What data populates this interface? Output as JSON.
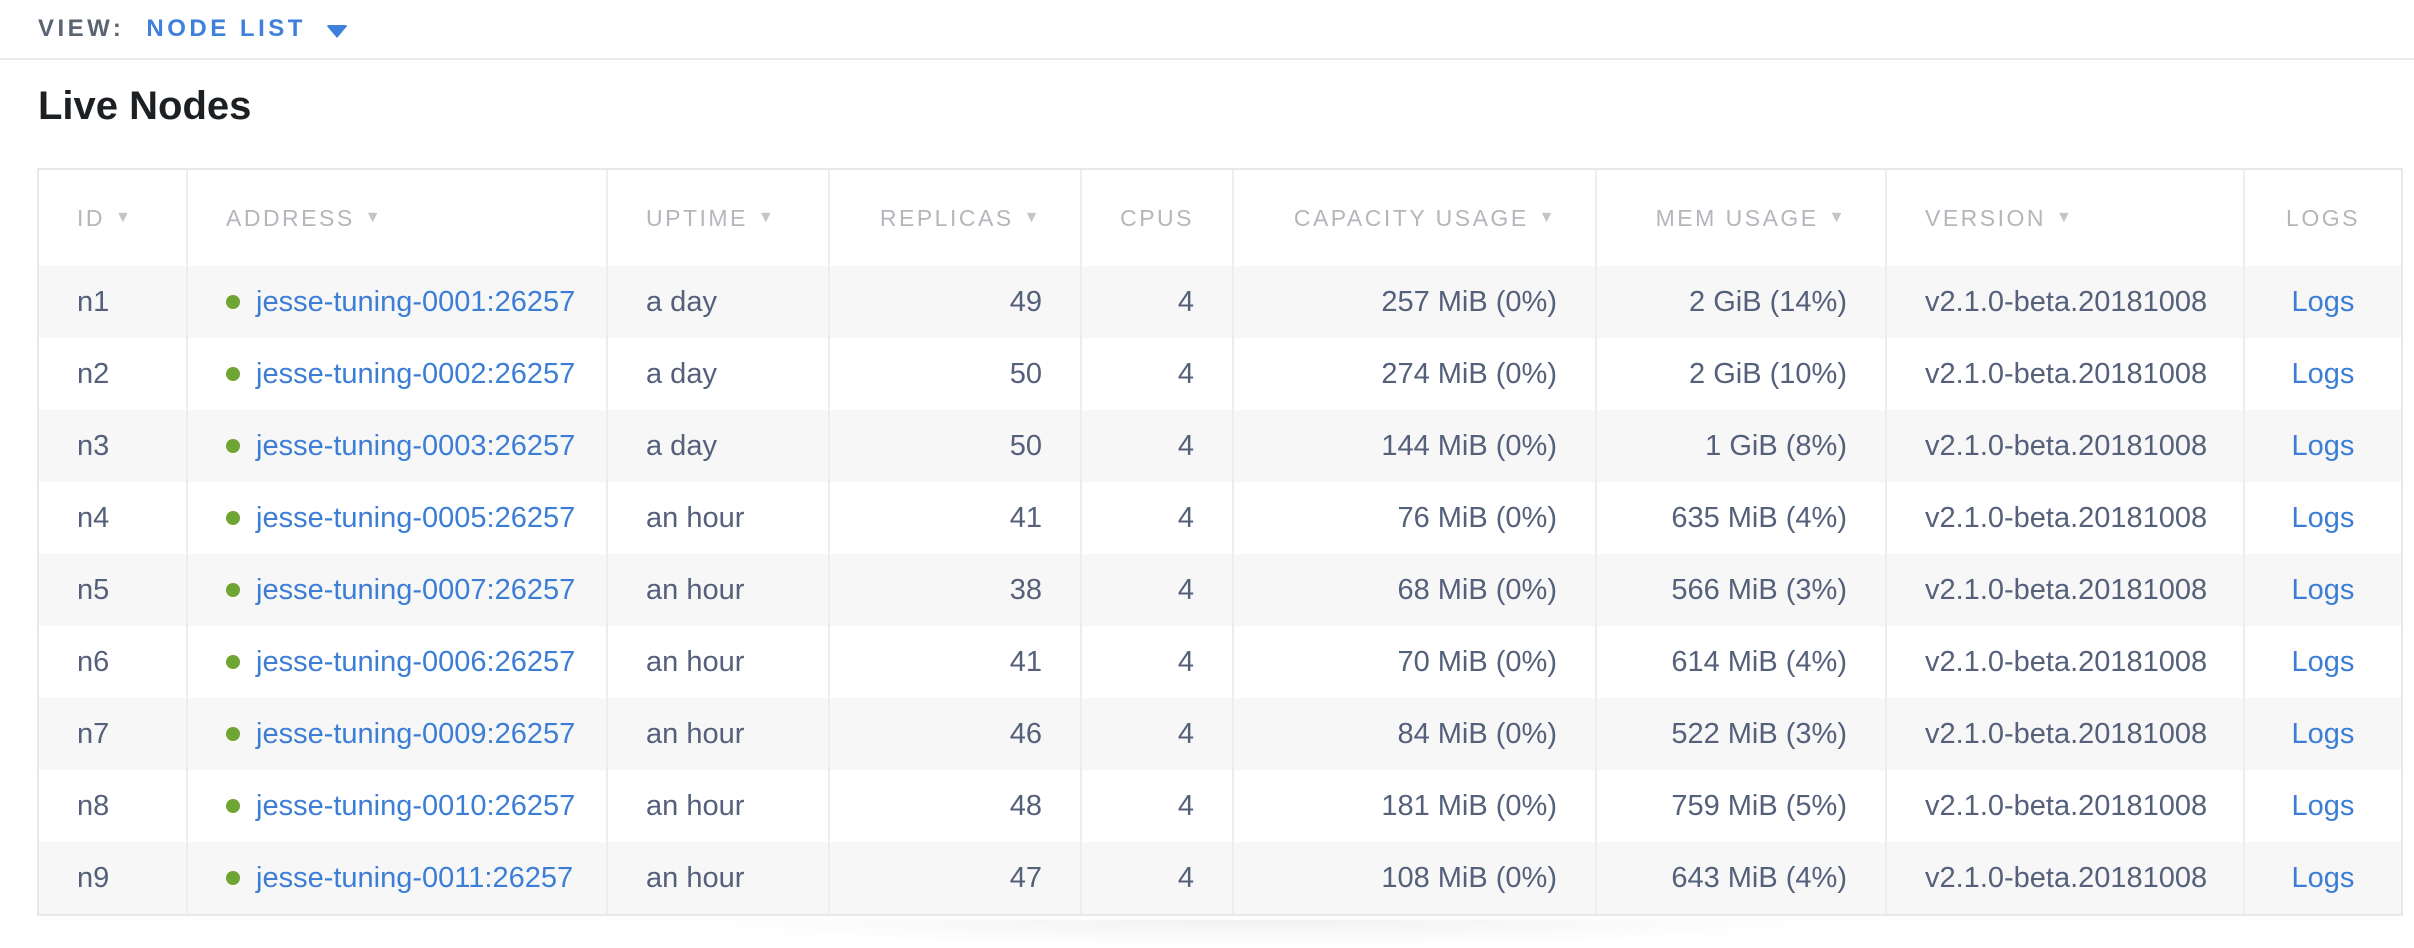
{
  "view_bar": {
    "label": "VIEW:",
    "selected": "NODE LIST",
    "caret_icon": "chevron-down"
  },
  "page": {
    "title": "Live Nodes"
  },
  "table": {
    "sort_icon": "▼",
    "columns": [
      {
        "label": "ID",
        "sortable": true,
        "align": "left"
      },
      {
        "label": "ADDRESS",
        "sortable": true,
        "align": "left"
      },
      {
        "label": "UPTIME",
        "sortable": true,
        "align": "left"
      },
      {
        "label": "REPLICAS",
        "sortable": true,
        "align": "right"
      },
      {
        "label": "CPUS",
        "sortable": false,
        "align": "right"
      },
      {
        "label": "CAPACITY USAGE",
        "sortable": true,
        "align": "right"
      },
      {
        "label": "MEM USAGE",
        "sortable": true,
        "align": "right"
      },
      {
        "label": "VERSION",
        "sortable": true,
        "align": "left"
      },
      {
        "label": "LOGS",
        "sortable": false,
        "align": "center"
      }
    ],
    "rows": [
      {
        "id": "n1",
        "address": "jesse-tuning-0001:26257",
        "uptime": "a day",
        "replicas": "49",
        "cpus": "4",
        "capacity": "257 MiB (0%)",
        "mem": "2 GiB (14%)",
        "version": "v2.1.0-beta.20181008",
        "logs": "Logs",
        "status": "live"
      },
      {
        "id": "n2",
        "address": "jesse-tuning-0002:26257",
        "uptime": "a day",
        "replicas": "50",
        "cpus": "4",
        "capacity": "274 MiB (0%)",
        "mem": "2 GiB (10%)",
        "version": "v2.1.0-beta.20181008",
        "logs": "Logs",
        "status": "live"
      },
      {
        "id": "n3",
        "address": "jesse-tuning-0003:26257",
        "uptime": "a day",
        "replicas": "50",
        "cpus": "4",
        "capacity": "144 MiB (0%)",
        "mem": "1 GiB (8%)",
        "version": "v2.1.0-beta.20181008",
        "logs": "Logs",
        "status": "live"
      },
      {
        "id": "n4",
        "address": "jesse-tuning-0005:26257",
        "uptime": "an hour",
        "replicas": "41",
        "cpus": "4",
        "capacity": "76 MiB (0%)",
        "mem": "635 MiB (4%)",
        "version": "v2.1.0-beta.20181008",
        "logs": "Logs",
        "status": "live"
      },
      {
        "id": "n5",
        "address": "jesse-tuning-0007:26257",
        "uptime": "an hour",
        "replicas": "38",
        "cpus": "4",
        "capacity": "68 MiB (0%)",
        "mem": "566 MiB (3%)",
        "version": "v2.1.0-beta.20181008",
        "logs": "Logs",
        "status": "live"
      },
      {
        "id": "n6",
        "address": "jesse-tuning-0006:26257",
        "uptime": "an hour",
        "replicas": "41",
        "cpus": "4",
        "capacity": "70 MiB (0%)",
        "mem": "614 MiB (4%)",
        "version": "v2.1.0-beta.20181008",
        "logs": "Logs",
        "status": "live"
      },
      {
        "id": "n7",
        "address": "jesse-tuning-0009:26257",
        "uptime": "an hour",
        "replicas": "46",
        "cpus": "4",
        "capacity": "84 MiB (0%)",
        "mem": "522 MiB (3%)",
        "version": "v2.1.0-beta.20181008",
        "logs": "Logs",
        "status": "live"
      },
      {
        "id": "n8",
        "address": "jesse-tuning-0010:26257",
        "uptime": "an hour",
        "replicas": "48",
        "cpus": "4",
        "capacity": "181 MiB (0%)",
        "mem": "759 MiB (5%)",
        "version": "v2.1.0-beta.20181008",
        "logs": "Logs",
        "status": "live"
      },
      {
        "id": "n9",
        "address": "jesse-tuning-0011:26257",
        "uptime": "an hour",
        "replicas": "47",
        "cpus": "4",
        "capacity": "108 MiB (0%)",
        "mem": "643 MiB (4%)",
        "version": "v2.1.0-beta.20181008",
        "logs": "Logs",
        "status": "live"
      }
    ]
  },
  "colors": {
    "accent_blue": "#3c7ed6",
    "view_blue": "#3f80dc",
    "live_green": "#70a433",
    "header_gray": "#b3b6bb",
    "cell_slate": "#55607a",
    "row_alt_bg": "#f7f7f8",
    "border": "#e7e8e9"
  }
}
